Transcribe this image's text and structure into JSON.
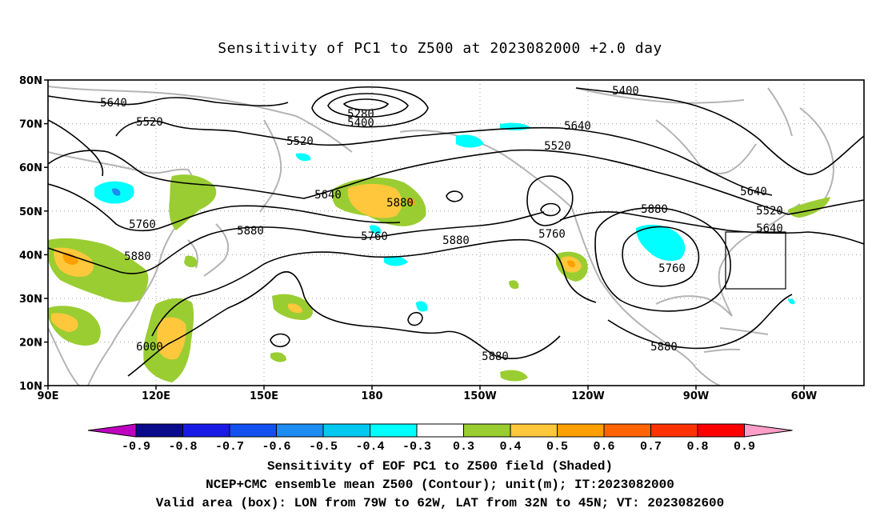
{
  "title": "Sensitivity of PC1 to Z500 at 2023082000 +2.0 day",
  "map": {
    "lat_labels": [
      "80N",
      "70N",
      "60N",
      "50N",
      "40N",
      "30N",
      "20N",
      "10N"
    ],
    "lon_labels": [
      "90E",
      "120E",
      "150E",
      "180",
      "150W",
      "120W",
      "90W",
      "60W"
    ],
    "contour_labels": [
      "5640",
      "5520",
      "5280",
      "5400",
      "5520",
      "5400",
      "5640",
      "5520",
      "5640",
      "5520",
      "5640",
      "5760",
      "5640",
      "5760",
      "5880",
      "5880",
      "5760",
      "5880",
      "5880",
      "5760",
      "6000",
      "5880",
      "5880",
      "5880"
    ],
    "valid_box": {
      "lon_from": "79W",
      "lon_to": "62W",
      "lat_from": "32N",
      "lat_to": "45N"
    }
  },
  "colorbar": {
    "tick_labels": [
      "-0.9",
      "-0.8",
      "-0.7",
      "-0.6",
      "-0.5",
      "-0.4",
      "-0.3",
      "0.3",
      "0.4",
      "0.5",
      "0.6",
      "0.7",
      "0.8",
      "0.9"
    ],
    "colors": [
      "#c000c0",
      "#0a0a8c",
      "#1a1ae6",
      "#1450f0",
      "#1e8cf0",
      "#00c8f0",
      "#00ffff",
      "#ffffff",
      "#9acd32",
      "#ffc83c",
      "#ffa000",
      "#ff6400",
      "#ff3200",
      "#ff0000",
      "#ff9ec8"
    ]
  },
  "captions": {
    "line1": "Sensitivity of EOF PC1 to Z500 field (Shaded)",
    "line2": "NCEP+CMC ensemble mean Z500 (Contour); unit(m); IT:2023082000",
    "line3": "Valid area (box): LON from 79W to 62W, LAT from 32N to 45N; VT: 2023082600"
  }
}
